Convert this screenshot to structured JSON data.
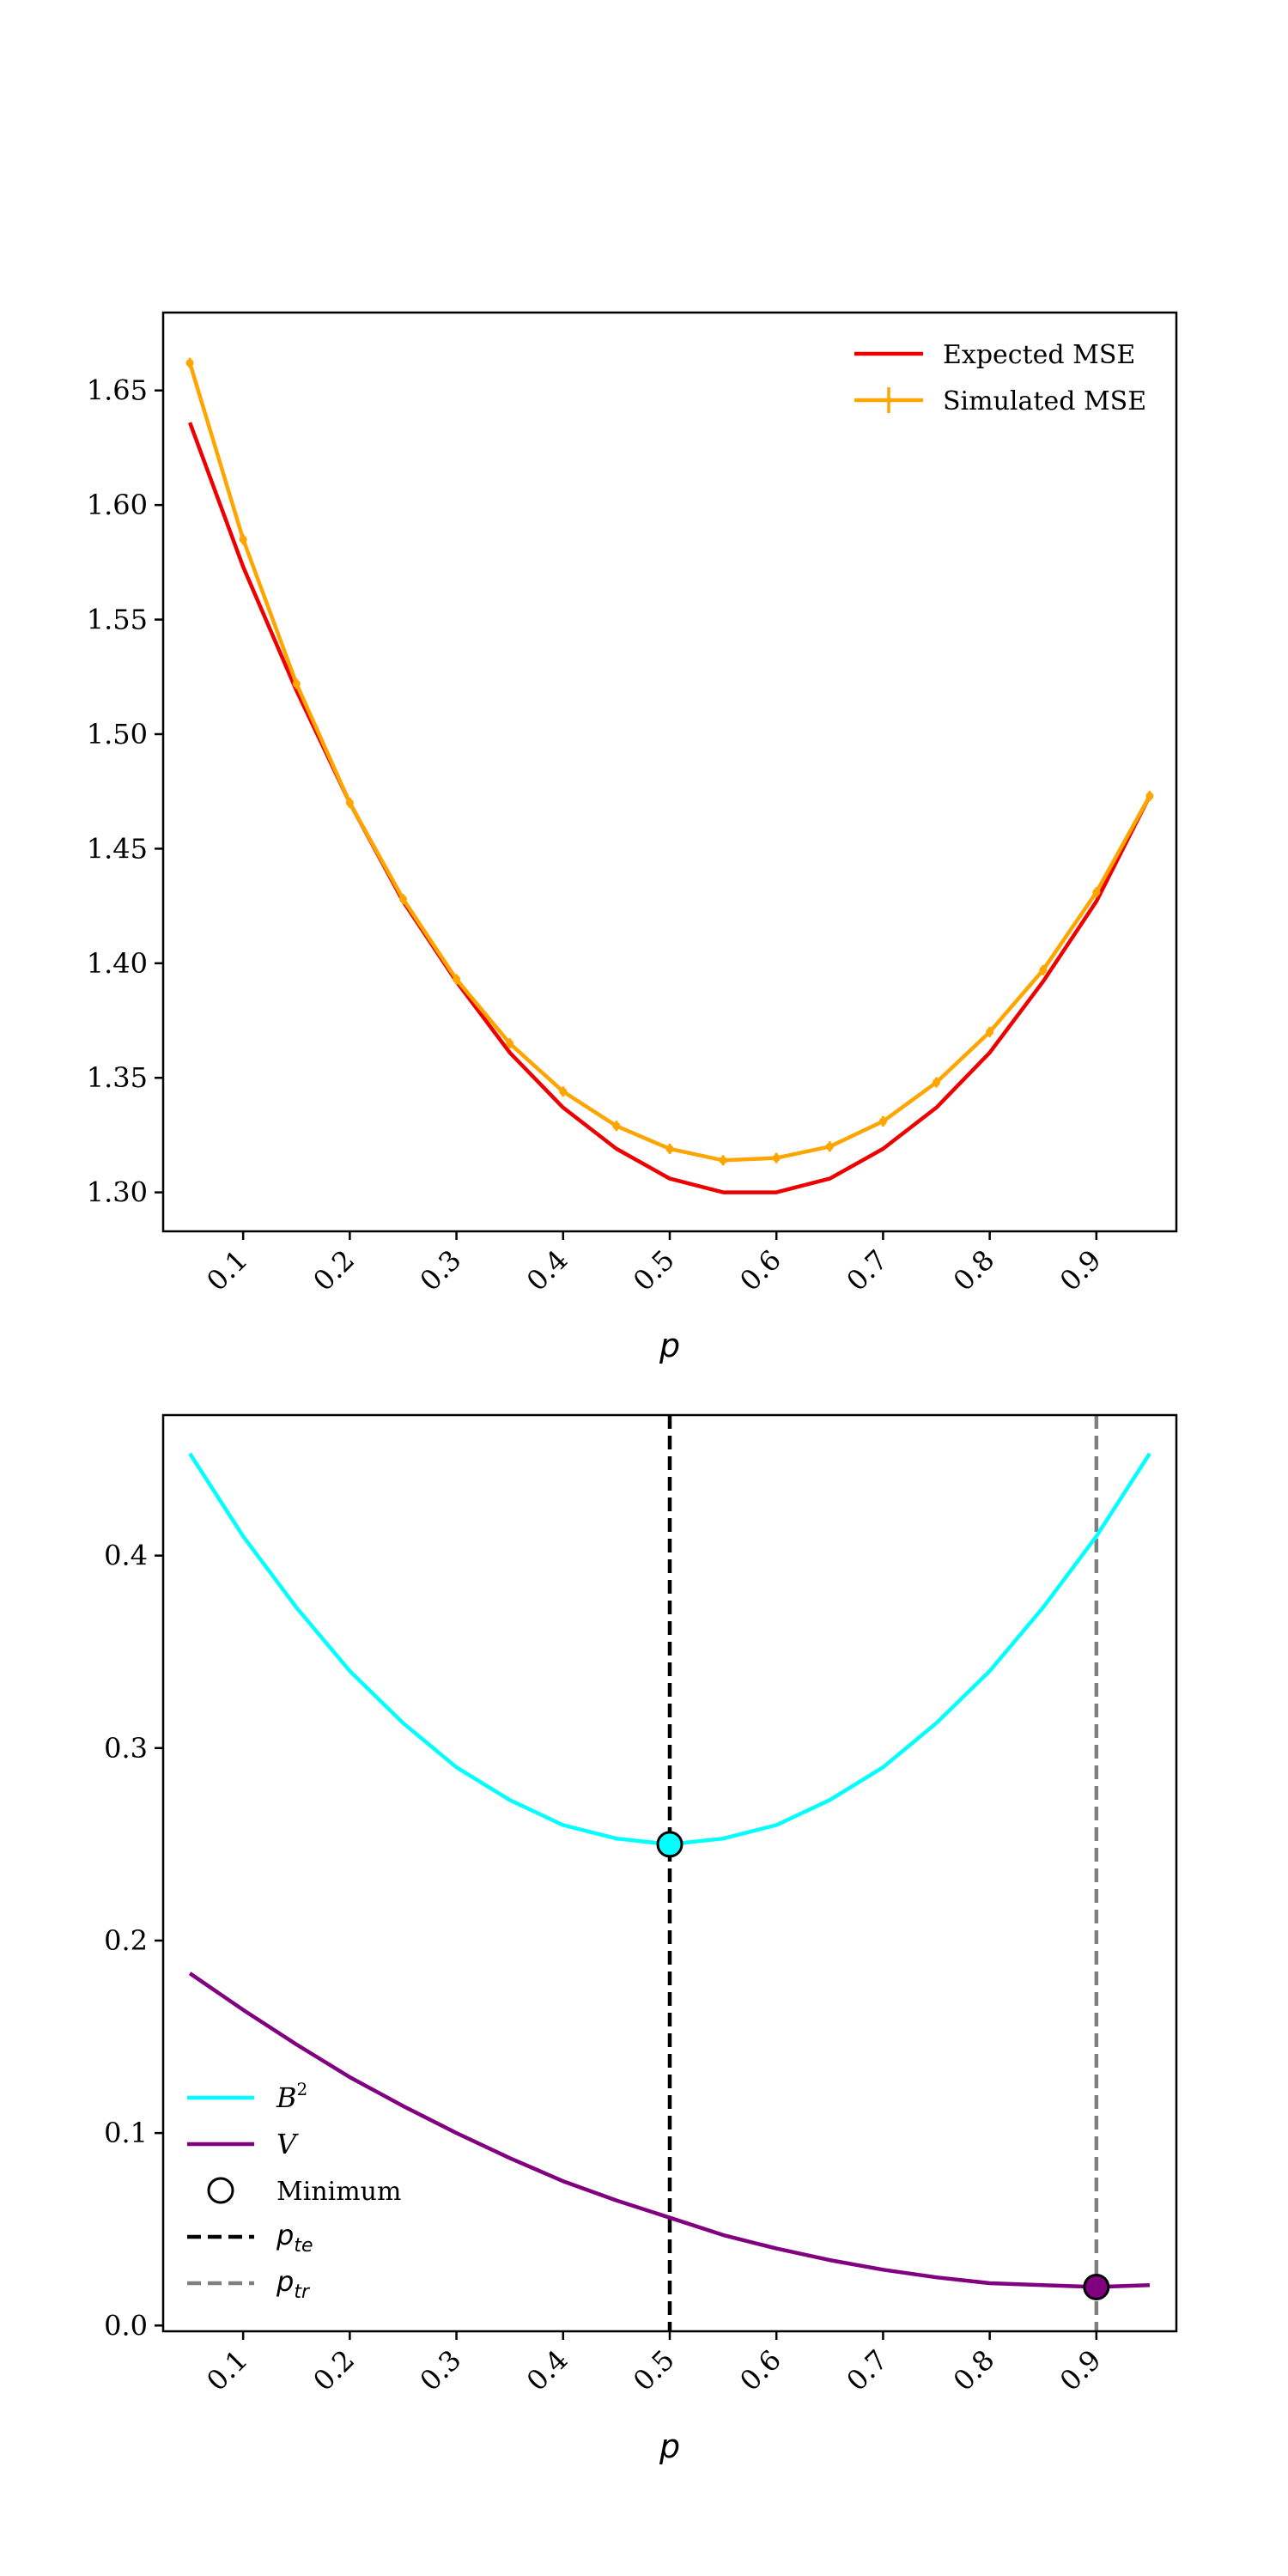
{
  "chart_data": [
    {
      "type": "line",
      "xlabel": "p",
      "ylabel": "",
      "xlim": [
        0.025,
        0.975
      ],
      "ylim": [
        1.283,
        1.684
      ],
      "x_ticks": [
        0.1,
        0.2,
        0.3,
        0.4,
        0.5,
        0.6,
        0.7,
        0.8,
        0.9
      ],
      "x_tick_labels": [
        "0.1",
        "0.2",
        "0.3",
        "0.4",
        "0.5",
        "0.6",
        "0.7",
        "0.8",
        "0.9"
      ],
      "y_ticks": [
        1.3,
        1.35,
        1.4,
        1.45,
        1.5,
        1.55,
        1.6,
        1.65
      ],
      "y_tick_labels": [
        "1.30",
        "1.35",
        "1.40",
        "1.45",
        "1.50",
        "1.55",
        "1.60",
        "1.65"
      ],
      "grid": false,
      "legend_position": "top-right",
      "x": [
        0.05,
        0.1,
        0.15,
        0.2,
        0.25,
        0.3,
        0.35,
        0.4,
        0.45,
        0.5,
        0.55,
        0.6,
        0.65,
        0.7,
        0.75,
        0.8,
        0.85,
        0.9,
        0.95
      ],
      "series": [
        {
          "name": "Expected MSE",
          "color": "#ee0000",
          "marker": "none",
          "values": [
            1.636,
            1.573,
            1.519,
            1.47,
            1.427,
            1.392,
            1.361,
            1.337,
            1.319,
            1.306,
            1.3,
            1.3,
            1.306,
            1.319,
            1.337,
            1.361,
            1.392,
            1.427,
            1.473
          ]
        },
        {
          "name": "Simulated MSE",
          "color": "#ffa500",
          "marker": "errorbar",
          "values": [
            1.662,
            1.585,
            1.522,
            1.47,
            1.428,
            1.393,
            1.365,
            1.344,
            1.329,
            1.319,
            1.314,
            1.315,
            1.32,
            1.331,
            1.348,
            1.37,
            1.397,
            1.431,
            1.473
          ]
        }
      ]
    },
    {
      "type": "line",
      "xlabel": "p",
      "ylabel": "",
      "xlim": [
        0.025,
        0.975
      ],
      "ylim": [
        -0.003,
        0.473
      ],
      "x_ticks": [
        0.1,
        0.2,
        0.3,
        0.4,
        0.5,
        0.6,
        0.7,
        0.8,
        0.9
      ],
      "x_tick_labels": [
        "0.1",
        "0.2",
        "0.3",
        "0.4",
        "0.5",
        "0.6",
        "0.7",
        "0.8",
        "0.9"
      ],
      "y_ticks": [
        0.0,
        0.1,
        0.2,
        0.3,
        0.4
      ],
      "y_tick_labels": [
        "0.0",
        "0.1",
        "0.2",
        "0.3",
        "0.4"
      ],
      "grid": false,
      "legend_position": "lower-left",
      "x": [
        0.05,
        0.1,
        0.15,
        0.2,
        0.25,
        0.3,
        0.35,
        0.4,
        0.45,
        0.5,
        0.55,
        0.6,
        0.65,
        0.7,
        0.75,
        0.8,
        0.85,
        0.9,
        0.95
      ],
      "series": [
        {
          "name": "B2",
          "color": "#00ffff",
          "values": [
            0.453,
            0.41,
            0.373,
            0.34,
            0.313,
            0.29,
            0.273,
            0.26,
            0.253,
            0.25,
            0.253,
            0.26,
            0.273,
            0.29,
            0.313,
            0.34,
            0.373,
            0.41,
            0.453
          ]
        },
        {
          "name": "V",
          "color": "#800080",
          "values": [
            0.183,
            0.164,
            0.146,
            0.129,
            0.114,
            0.1,
            0.087,
            0.075,
            0.065,
            0.056,
            0.047,
            0.04,
            0.034,
            0.029,
            0.025,
            0.022,
            0.021,
            0.02,
            0.021
          ]
        }
      ],
      "minimum_markers": [
        {
          "series": "B2",
          "x": 0.5,
          "y": 0.25
        },
        {
          "series": "V",
          "x": 0.9,
          "y": 0.02
        }
      ],
      "vertical_lines": [
        {
          "name": "p_te",
          "x": 0.5,
          "color": "#000000",
          "style": "dashed"
        },
        {
          "name": "p_tr",
          "x": 0.9,
          "color": "#808080",
          "style": "dashed"
        }
      ],
      "legend": {
        "b2": "B",
        "b2_sup": "2",
        "v": "V",
        "minimum": "Minimum",
        "pte": "p",
        "pte_sub": "te",
        "ptr": "p",
        "ptr_sub": "tr"
      }
    }
  ]
}
